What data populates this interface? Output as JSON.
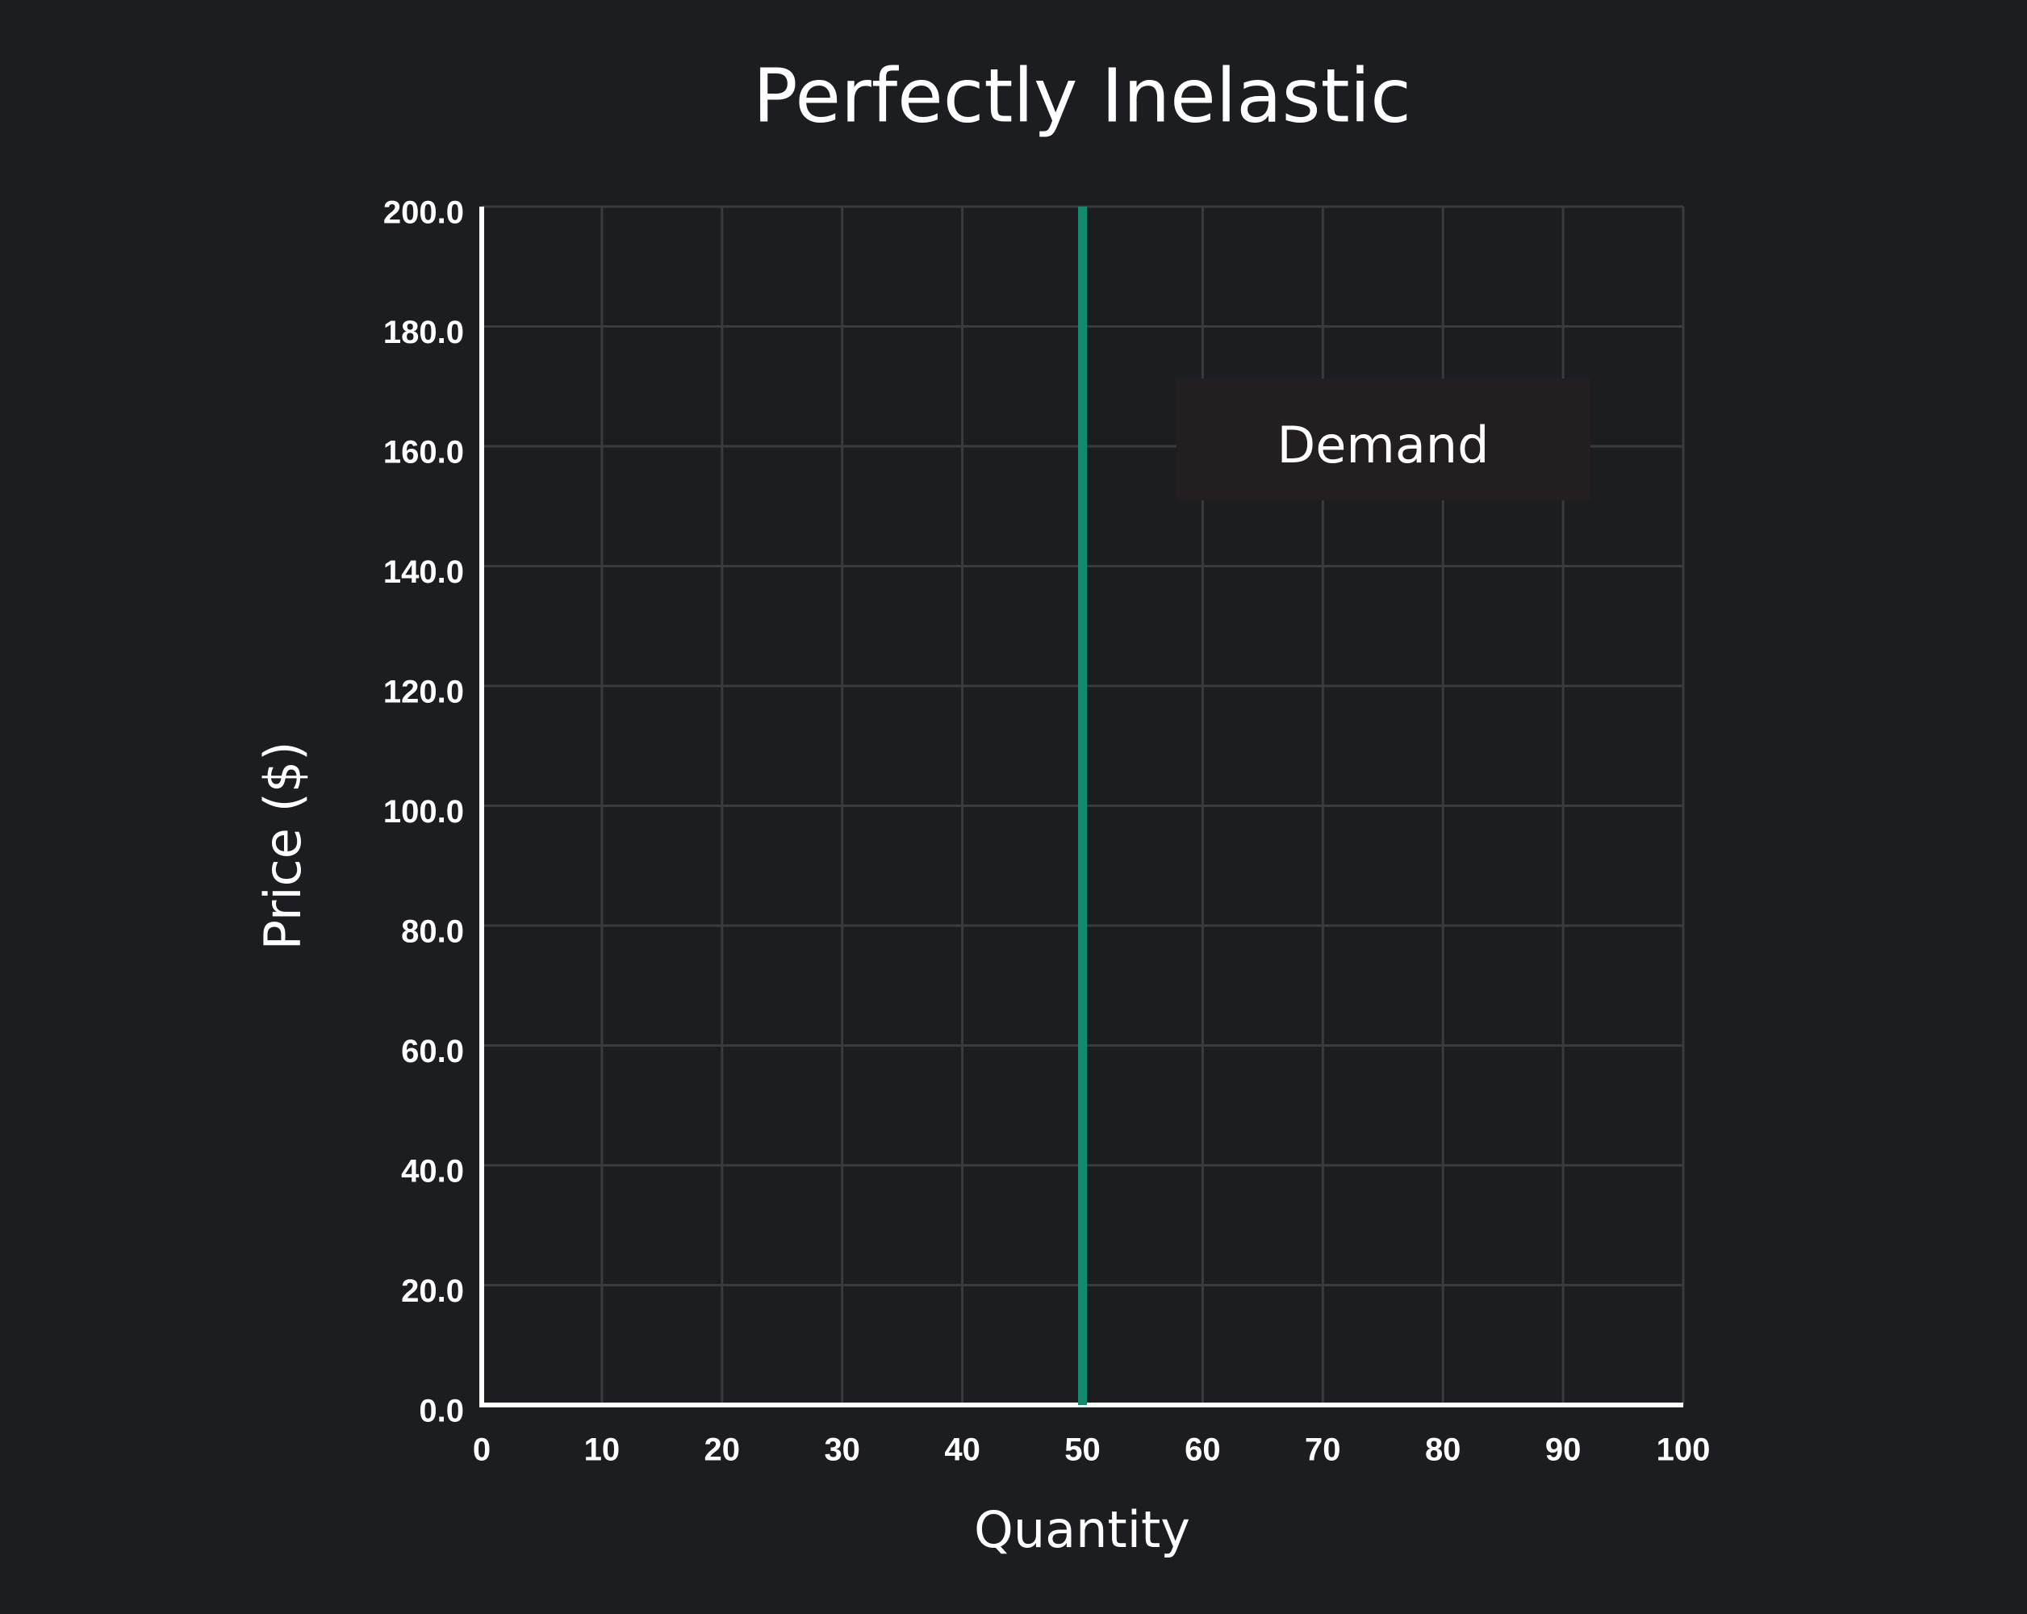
{
  "chart_data": {
    "type": "line",
    "title": "Perfectly Inelastic",
    "x_label": "Quantity",
    "y_label": "Price ($)",
    "series": [
      {
        "name": "Demand",
        "color": "#138a6c",
        "x": [
          50,
          50
        ],
        "values": [
          0,
          200
        ]
      }
    ],
    "xlim": [
      0,
      100
    ],
    "xticks": [
      0,
      10,
      20,
      30,
      40,
      50,
      60,
      70,
      80,
      90,
      100
    ],
    "ylim": [
      0,
      200
    ],
    "yticks": [
      {
        "value": 0,
        "label": "0.0"
      },
      {
        "value": 20,
        "label": "20.0"
      },
      {
        "value": 40,
        "label": "40.0"
      },
      {
        "value": 60,
        "label": "60.0"
      },
      {
        "value": 80,
        "label": "80.0"
      },
      {
        "value": 100,
        "label": "100.0"
      },
      {
        "value": 120,
        "label": "120.0"
      },
      {
        "value": 140,
        "label": "140.0"
      },
      {
        "value": 160,
        "label": "160.0"
      },
      {
        "value": 180,
        "label": "180.0"
      },
      {
        "value": 200,
        "label": "200.0"
      }
    ],
    "grid": true
  }
}
